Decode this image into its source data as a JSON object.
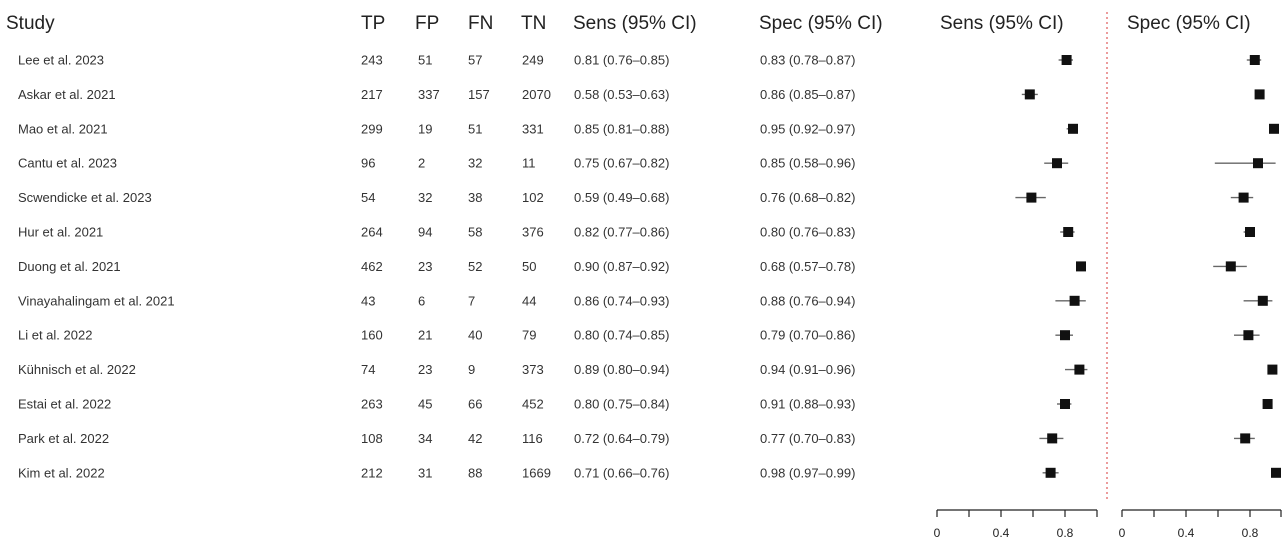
{
  "headers": [
    "Study",
    "TP",
    "FP",
    "FN",
    "TN",
    "Sens (95% CI)",
    "Spec (95% CI)"
  ],
  "panels": [
    {
      "title": "Sens (95% CI)",
      "ticks": [
        0,
        0.2,
        0.4,
        0.6,
        0.8,
        1
      ],
      "tick_labels": [
        "0",
        "",
        "0.4",
        "",
        "0.8",
        ""
      ]
    },
    {
      "title": "Spec (95% CI)",
      "ticks": [
        0,
        0.2,
        0.4,
        0.6,
        0.8,
        1
      ],
      "tick_labels": [
        "0",
        "",
        "0.4",
        "",
        "0.8",
        ""
      ]
    }
  ],
  "studies": [
    {
      "study": "Lee et al. 2023",
      "tp": "243",
      "fp": "51",
      "fn": "57",
      "tn": "249",
      "sens_text": "0.81 (0.76–0.85)",
      "spec_text": "0.83 (0.78–0.87)"
    },
    {
      "study": "Askar et al. 2021",
      "tp": "217",
      "fp": "337",
      "fn": "157",
      "tn": "2070",
      "sens_text": "0.58 (0.53–0.63)",
      "spec_text": "0.86 (0.85–0.87)"
    },
    {
      "study": "Mao et al. 2021",
      "tp": "299",
      "fp": "19",
      "fn": "51",
      "tn": "331",
      "sens_text": "0.85 (0.81–0.88)",
      "spec_text": "0.95 (0.92–0.97)"
    },
    {
      "study": "Cantu et al. 2023",
      "tp": "96",
      "fp": "2",
      "fn": "32",
      "tn": "11",
      "sens_text": "0.75 (0.67–0.82)",
      "spec_text": "0.85 (0.58–0.96)"
    },
    {
      "study": "Scwendicke et al. 2023",
      "tp": "54",
      "fp": "32",
      "fn": "38",
      "tn": "102",
      "sens_text": "0.59 (0.49–0.68)",
      "spec_text": "0.76 (0.68–0.82)"
    },
    {
      "study": "Hur et al. 2021",
      "tp": "264",
      "fp": "94",
      "fn": "58",
      "tn": "376",
      "sens_text": "0.82 (0.77–0.86)",
      "spec_text": "0.80 (0.76–0.83)"
    },
    {
      "study": "Duong et al. 2021",
      "tp": "462",
      "fp": "23",
      "fn": "52",
      "tn": "50",
      "sens_text": "0.90 (0.87–0.92)",
      "spec_text": "0.68 (0.57–0.78)"
    },
    {
      "study": "Vinayahalingam et al. 2021",
      "tp": "43",
      "fp": "6",
      "fn": "7",
      "tn": "44",
      "sens_text": "0.86 (0.74–0.93)",
      "spec_text": "0.88 (0.76–0.94)"
    },
    {
      "study": "Li et al. 2022",
      "tp": "160",
      "fp": "21",
      "fn": "40",
      "tn": "79",
      "sens_text": "0.80 (0.74–0.85)",
      "spec_text": "0.79 (0.70–0.86)"
    },
    {
      "study": "Kühnisch et al. 2022",
      "tp": "74",
      "fp": "23",
      "fn": "9",
      "tn": "373",
      "sens_text": "0.89 (0.80–0.94)",
      "spec_text": "0.94 (0.91–0.96)"
    },
    {
      "study": "Estai et al. 2022",
      "tp": "263",
      "fp": "45",
      "fn": "66",
      "tn": "452",
      "sens_text": "0.80 (0.75–0.84)",
      "spec_text": "0.91 (0.88–0.93)"
    },
    {
      "study": "Park et al. 2022",
      "tp": "108",
      "fp": "34",
      "fn": "42",
      "tn": "116",
      "sens_text": "0.72 (0.64–0.79)",
      "spec_text": "0.77 (0.70–0.83)"
    },
    {
      "study": "Kim et al. 2022",
      "tp": "212",
      "fp": "31",
      "fn": "88",
      "tn": "1669",
      "sens_text": "0.71 (0.66–0.76)",
      "spec_text": "0.98 (0.97–0.99)"
    }
  ],
  "chart_data": {
    "type": "forest",
    "title": "",
    "series": [
      {
        "name": "Sens (95% CI)",
        "estimate": [
          0.81,
          0.58,
          0.85,
          0.75,
          0.59,
          0.82,
          0.9,
          0.86,
          0.8,
          0.89,
          0.8,
          0.72,
          0.71
        ],
        "lower": [
          0.76,
          0.53,
          0.81,
          0.67,
          0.49,
          0.77,
          0.87,
          0.74,
          0.74,
          0.8,
          0.75,
          0.64,
          0.66
        ],
        "upper": [
          0.85,
          0.63,
          0.88,
          0.82,
          0.68,
          0.86,
          0.92,
          0.93,
          0.85,
          0.94,
          0.84,
          0.79,
          0.76
        ]
      },
      {
        "name": "Spec (95% CI)",
        "estimate": [
          0.83,
          0.86,
          0.95,
          0.85,
          0.76,
          0.8,
          0.68,
          0.88,
          0.79,
          0.94,
          0.91,
          0.77,
          0.98
        ],
        "lower": [
          0.78,
          0.85,
          0.92,
          0.58,
          0.68,
          0.76,
          0.57,
          0.76,
          0.7,
          0.91,
          0.88,
          0.7,
          0.97
        ],
        "upper": [
          0.87,
          0.87,
          0.97,
          0.96,
          0.82,
          0.83,
          0.78,
          0.94,
          0.86,
          0.96,
          0.93,
          0.83,
          0.99
        ]
      }
    ],
    "xlim": [
      0,
      1
    ],
    "grid": false,
    "colors": {
      "marker": "#111111",
      "ci_line": "#666666",
      "divider": "#e05a5a",
      "axis": "#222222",
      "text": "#333333"
    }
  }
}
